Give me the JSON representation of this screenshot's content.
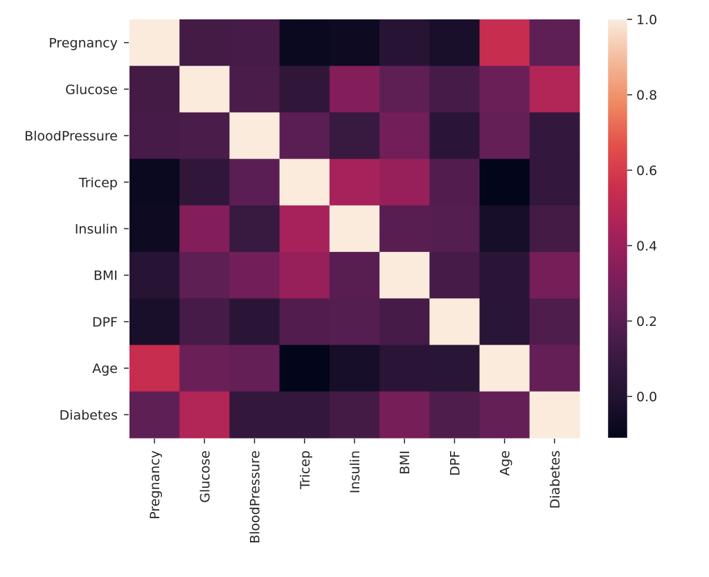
{
  "chart_data": {
    "type": "heatmap",
    "title": "",
    "xlabel": "",
    "ylabel": "",
    "grid": false,
    "colormap": "rocket",
    "x_labels": [
      "Pregnancy",
      "Glucose",
      "BloodPressure",
      "Tricep",
      "Insulin",
      "BMI",
      "DPF",
      "Age",
      "Diabetes"
    ],
    "y_labels": [
      "Pregnancy",
      "Glucose",
      "BloodPressure",
      "Tricep",
      "Insulin",
      "BMI",
      "DPF",
      "Age",
      "Diabetes"
    ],
    "values": [
      [
        1.0,
        0.13,
        0.14,
        -0.08,
        -0.07,
        0.02,
        -0.03,
        0.54,
        0.22
      ],
      [
        0.13,
        1.0,
        0.15,
        0.06,
        0.33,
        0.22,
        0.14,
        0.26,
        0.47
      ],
      [
        0.14,
        0.15,
        1.0,
        0.21,
        0.09,
        0.28,
        0.04,
        0.24,
        0.07
      ],
      [
        -0.08,
        0.06,
        0.21,
        1.0,
        0.44,
        0.39,
        0.18,
        -0.11,
        0.07
      ],
      [
        -0.07,
        0.33,
        0.09,
        0.44,
        1.0,
        0.2,
        0.19,
        -0.04,
        0.13
      ],
      [
        0.02,
        0.22,
        0.28,
        0.39,
        0.2,
        1.0,
        0.14,
        0.04,
        0.29
      ],
      [
        -0.03,
        0.14,
        0.04,
        0.18,
        0.19,
        0.14,
        1.0,
        0.03,
        0.17
      ],
      [
        0.54,
        0.26,
        0.24,
        -0.11,
        -0.04,
        0.04,
        0.03,
        1.0,
        0.24
      ],
      [
        0.22,
        0.47,
        0.07,
        0.07,
        0.13,
        0.29,
        0.17,
        0.24,
        1.0
      ]
    ],
    "colorbar": {
      "range": [
        -0.11,
        1.0
      ],
      "ticks": [
        0.0,
        0.2,
        0.4,
        0.6,
        0.8,
        1.0
      ],
      "tick_labels": [
        "0.0",
        "0.2",
        "0.4",
        "0.6",
        "0.8",
        "1.0"
      ],
      "placement": "right"
    },
    "colormap_stops": [
      {
        "v": 0.0,
        "color": "#03051a"
      },
      {
        "v": 0.1,
        "color": "#221331"
      },
      {
        "v": 0.2,
        "color": "#3d1a42"
      },
      {
        "v": 0.3,
        "color": "#5f1f56"
      },
      {
        "v": 0.4,
        "color": "#841e5a"
      },
      {
        "v": 0.5,
        "color": "#a9225a"
      },
      {
        "v": 0.6,
        "color": "#cb2f4d"
      },
      {
        "v": 0.7,
        "color": "#e3504a"
      },
      {
        "v": 0.8,
        "color": "#ef8a62"
      },
      {
        "v": 0.9,
        "color": "#f4b999"
      },
      {
        "v": 1.0,
        "color": "#faebdd"
      }
    ]
  }
}
